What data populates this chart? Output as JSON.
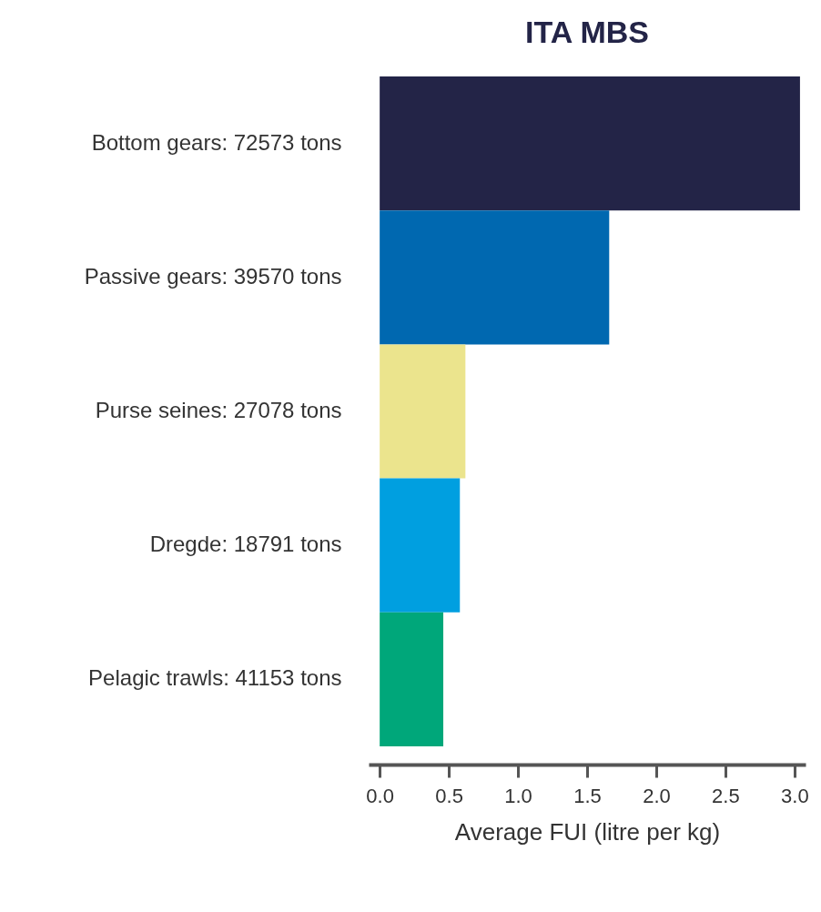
{
  "chart_data": {
    "type": "bar",
    "orientation": "horizontal",
    "title": "ITA MBS",
    "xlabel": "Average FUI (litre per kg)",
    "categories": [
      "Bottom gears: 72573 tons",
      "Passive gears: 39570 tons",
      "Purse seines: 27078 tons",
      "Dregde: 18791 tons",
      "Pelagic trawls: 41153 tons"
    ],
    "values": [
      3.04,
      1.66,
      0.62,
      0.58,
      0.46
    ],
    "colors": [
      "#232447",
      "#0068b0",
      "#ebe48d",
      "#009fe0",
      "#00a77a"
    ],
    "xlim": [
      -0.08,
      3.08
    ],
    "xticks": [
      {
        "value": 0,
        "label": "0.0"
      },
      0.5,
      {
        "value": 1,
        "label": "1.0"
      },
      1.5,
      {
        "value": 2,
        "label": "2.0"
      },
      2.5,
      {
        "value": 3,
        "label": "3.0"
      }
    ],
    "grid": false,
    "legend": false
  }
}
